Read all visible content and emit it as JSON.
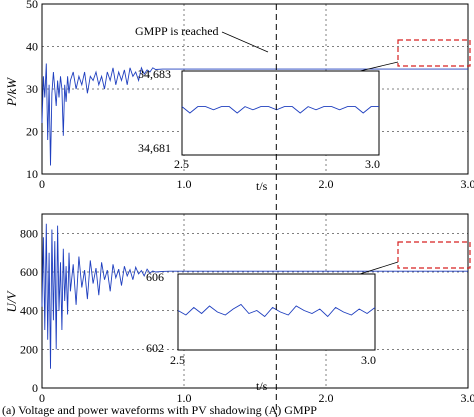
{
  "chart_data": [
    {
      "type": "line",
      "ylabel": "P/kW",
      "xlabel": "t/s",
      "xlim": [
        0,
        3.0
      ],
      "ylim": [
        10,
        50
      ],
      "xticks": [
        "0",
        "1.0",
        "2.0",
        "3.0"
      ],
      "yticks": [
        "10",
        "20",
        "30",
        "40",
        "50"
      ],
      "series": [
        {
          "color": "#1f3fbf",
          "x": [
            0,
            0.01,
            0.02,
            0.03,
            0.04,
            0.05,
            0.06,
            0.07,
            0.08,
            0.09,
            0.1,
            0.11,
            0.12,
            0.13,
            0.14,
            0.15,
            0.16,
            0.17,
            0.18,
            0.19,
            0.2,
            0.22,
            0.24,
            0.26,
            0.28,
            0.3,
            0.32,
            0.34,
            0.36,
            0.38,
            0.4,
            0.42,
            0.44,
            0.46,
            0.48,
            0.5,
            0.52,
            0.54,
            0.56,
            0.58,
            0.6,
            0.62,
            0.64,
            0.66,
            0.68,
            0.7,
            0.72,
            0.74,
            0.76,
            0.78,
            0.8,
            0.85,
            0.9,
            1.0,
            1.5,
            2.0,
            2.5,
            3.0
          ],
          "y": [
            22,
            33,
            28,
            36,
            18,
            31,
            12,
            29,
            34,
            30,
            26,
            32,
            28,
            33,
            30,
            19,
            31,
            27,
            33,
            29,
            32,
            34,
            30,
            33,
            31,
            34,
            29,
            33,
            32,
            34,
            31,
            33,
            30,
            34,
            32,
            35,
            31,
            34,
            32,
            34.5,
            31,
            35,
            33,
            34,
            32,
            35,
            33.5,
            34.5,
            34,
            35,
            34.6,
            34.68,
            34.68,
            34.68,
            34.68,
            34.68,
            34.68,
            34.68
          ]
        }
      ],
      "annotations": {
        "gmpp_text": "GMPP is reached",
        "gmpp_time": 1.65
      },
      "inset": {
        "xlim": [
          2.5,
          3.0
        ],
        "ylim": [
          34.681,
          34.683
        ],
        "xticks": [
          "2.5",
          "3.0"
        ],
        "yticks": [
          "34,683",
          "34,681"
        ],
        "x": [
          2.5,
          2.52,
          2.54,
          2.56,
          2.58,
          2.6,
          2.62,
          2.64,
          2.66,
          2.68,
          2.7,
          2.72,
          2.74,
          2.76,
          2.78,
          2.8,
          2.82,
          2.84,
          2.86,
          2.88,
          2.9,
          2.92,
          2.94,
          2.96,
          2.98,
          3.0
        ],
        "y": [
          34.6822,
          34.682,
          34.6822,
          34.6822,
          34.6821,
          34.6822,
          34.6822,
          34.682,
          34.6822,
          34.6821,
          34.6822,
          34.6822,
          34.6821,
          34.6822,
          34.6822,
          34.682,
          34.6822,
          34.6821,
          34.6822,
          34.6822,
          34.6821,
          34.6822,
          34.6822,
          34.682,
          34.6822,
          34.6822
        ]
      }
    },
    {
      "type": "line",
      "ylabel": "U/V",
      "xlabel": "t/s",
      "xlim": [
        0,
        3.0
      ],
      "ylim": [
        0,
        900
      ],
      "xticks": [
        "0",
        "1.0",
        "2.0",
        "3.0"
      ],
      "yticks": [
        "0",
        "200",
        "400",
        "600",
        "800"
      ],
      "series": [
        {
          "color": "#1f3fbf",
          "x": [
            0,
            0.01,
            0.02,
            0.03,
            0.04,
            0.05,
            0.06,
            0.07,
            0.08,
            0.09,
            0.1,
            0.11,
            0.12,
            0.13,
            0.14,
            0.15,
            0.16,
            0.17,
            0.18,
            0.19,
            0.2,
            0.22,
            0.24,
            0.26,
            0.28,
            0.3,
            0.32,
            0.34,
            0.36,
            0.38,
            0.4,
            0.42,
            0.44,
            0.46,
            0.48,
            0.5,
            0.52,
            0.54,
            0.56,
            0.58,
            0.6,
            0.62,
            0.64,
            0.66,
            0.68,
            0.7,
            0.72,
            0.74,
            0.76,
            0.78,
            0.8,
            0.85,
            0.9,
            1.0,
            1.5,
            2.0,
            2.5,
            3.0
          ],
          "y": [
            420,
            780,
            300,
            850,
            250,
            700,
            100,
            820,
            350,
            760,
            200,
            840,
            400,
            650,
            300,
            720,
            450,
            630,
            380,
            700,
            500,
            640,
            430,
            680,
            520,
            610,
            460,
            660,
            540,
            620,
            480,
            650,
            560,
            610,
            500,
            640,
            570,
            615,
            530,
            630,
            580,
            612,
            560,
            625,
            590,
            608,
            580,
            615,
            595,
            605,
            600,
            603,
            604,
            604,
            604,
            604,
            604,
            604
          ]
        }
      ],
      "inset": {
        "xlim": [
          2.5,
          3.0
        ],
        "ylim": [
          602,
          606
        ],
        "xticks": [
          "2.5",
          "3.0"
        ],
        "yticks": [
          "606",
          "602"
        ],
        "x": [
          2.5,
          2.52,
          2.54,
          2.56,
          2.58,
          2.6,
          2.62,
          2.64,
          2.66,
          2.68,
          2.7,
          2.72,
          2.74,
          2.76,
          2.78,
          2.8,
          2.82,
          2.84,
          2.86,
          2.88,
          2.9,
          2.92,
          2.94,
          2.96,
          2.98,
          3.0
        ],
        "y": [
          604.1,
          603.8,
          604.3,
          603.9,
          604.4,
          604.0,
          603.8,
          604.2,
          604.5,
          603.9,
          604.1,
          603.7,
          604.3,
          604.0,
          603.8,
          604.4,
          604.1,
          603.9,
          604.2,
          603.7,
          604.3,
          604.0,
          603.8,
          604.2,
          603.9,
          604.3
        ]
      }
    }
  ],
  "caption": "(a) Voltage and power waveforms with PV shadowing (A) GMPP"
}
